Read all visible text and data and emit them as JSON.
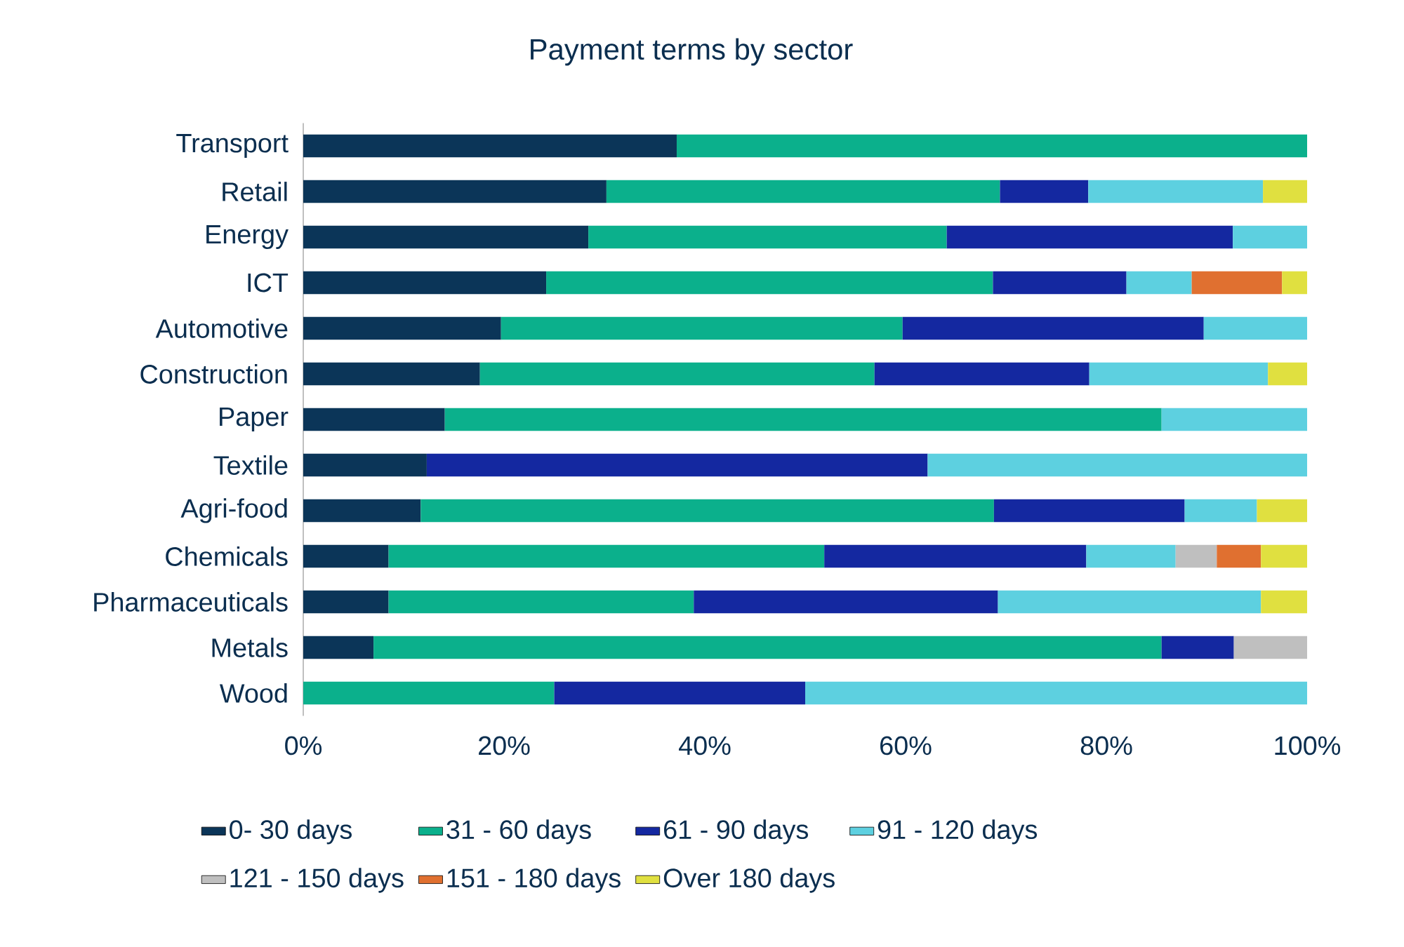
{
  "chart_data": {
    "type": "bar",
    "orientation": "horizontal",
    "stacked": true,
    "title": "Payment terms by sector",
    "categories": [
      "Transport",
      "Retail",
      "Energy",
      "ICT",
      "Automotive",
      "Construction",
      "Paper",
      "Textile",
      "Agri-food",
      "Chemicals",
      "Pharmaceuticals",
      "Metals",
      "Wood"
    ],
    "series": [
      {
        "name": "0- 30 days",
        "color": "#0b3558",
        "values": [
          37.2,
          30.2,
          28.4,
          24.2,
          19.7,
          17.6,
          14.1,
          12.3,
          11.7,
          8.5,
          8.5,
          7.0,
          null
        ]
      },
      {
        "name": "31 - 60 days",
        "color": "#0bb08c",
        "values": [
          62.8,
          39.2,
          35.7,
          44.5,
          40.0,
          39.3,
          71.4,
          null,
          57.1,
          43.4,
          30.4,
          78.5,
          25.0
        ]
      },
      {
        "name": "61 - 90 days",
        "color": "#1428a0",
        "values": [
          null,
          8.8,
          28.5,
          13.3,
          30.0,
          21.4,
          null,
          49.9,
          19.0,
          26.1,
          30.3,
          7.2,
          25.0
        ]
      },
      {
        "name": "91 - 120 days",
        "color": "#5dd0e0",
        "values": [
          null,
          17.4,
          7.4,
          6.5,
          10.3,
          17.8,
          14.5,
          37.8,
          7.2,
          8.9,
          26.2,
          null,
          50.0
        ]
      },
      {
        "name": "121 - 150 days",
        "color": "#bfbfbf",
        "values": [
          null,
          null,
          null,
          null,
          null,
          null,
          null,
          null,
          null,
          4.1,
          null,
          7.3,
          null
        ]
      },
      {
        "name": "151 - 180 days",
        "color": "#e07030",
        "values": [
          null,
          null,
          null,
          9.0,
          null,
          null,
          null,
          null,
          null,
          4.4,
          null,
          null,
          null
        ]
      },
      {
        "name": "Over 180 days",
        "color": "#e0e040",
        "values": [
          null,
          4.6,
          null,
          2.5,
          null,
          3.9,
          null,
          null,
          5.0,
          4.6,
          4.6,
          null,
          null
        ]
      }
    ],
    "xlim": [
      0,
      100
    ],
    "xticks": [
      {
        "value": 0,
        "label": "0%"
      },
      {
        "value": 20,
        "label": "20%"
      },
      {
        "value": 40,
        "label": "40%"
      },
      {
        "value": 60,
        "label": "60%"
      },
      {
        "value": 80,
        "label": "80%"
      },
      {
        "value": 100,
        "label": "100%"
      }
    ],
    "legend": "bottom"
  }
}
